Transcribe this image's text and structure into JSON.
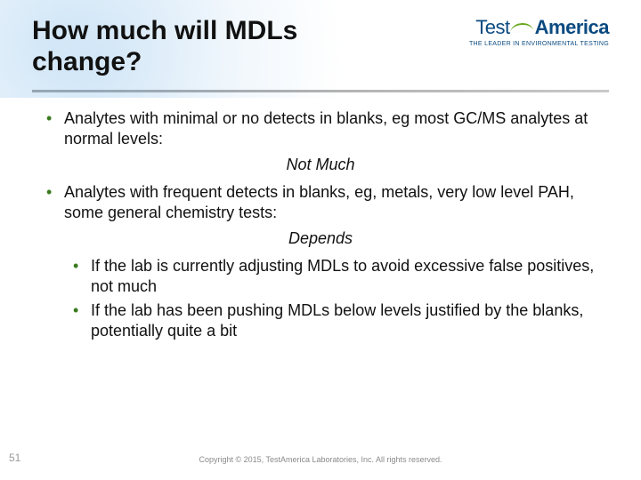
{
  "header": {
    "title": "How much will MDLs change?",
    "logo_left": "Test",
    "logo_right": "America",
    "tagline": "THE LEADER IN ENVIRONMENTAL TESTING"
  },
  "content": {
    "bullet1": "Analytes with minimal or no detects in blanks, eg most GC/MS analytes at normal levels:",
    "answer1": "Not Much",
    "bullet2": "Analytes with frequent detects in blanks, eg, metals, very low level PAH, some general chemistry tests:",
    "answer2": "Depends",
    "sub1": "If the lab is currently adjusting MDLs to avoid excessive false positives, not much",
    "sub2": "If the lab has been pushing MDLs below levels justified by the blanks, potentially quite a bit"
  },
  "footer": {
    "page": "51",
    "copyright": "Copyright © 2015, TestAmerica Laboratories, Inc. All rights reserved."
  },
  "colors": {
    "bullet": "#3a7a1e",
    "logo": "#0a4a80",
    "rule": "#9c9c9c"
  }
}
